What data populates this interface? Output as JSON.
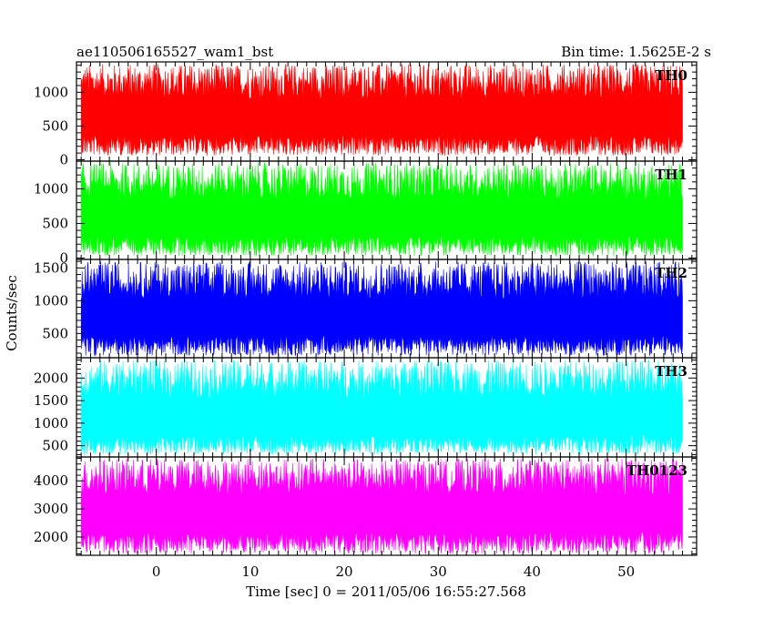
{
  "chart_data": {
    "type": "line",
    "title_left": "ae110506165527_wam1_bst",
    "title_right": "Bin time: 1.5625E-2 s",
    "xlabel": "Time [sec] 0 = 2011/05/06 16:55:27.568",
    "ylabel": "Counts/sec",
    "xlim": [
      -8.5,
      57.5
    ],
    "x_range": [
      -8,
      56
    ],
    "xticks": [
      0,
      10,
      20,
      30,
      40,
      50
    ],
    "xtick_labels": [
      "0",
      "10",
      "20",
      "30",
      "40",
      "50"
    ],
    "grid": false,
    "panels": [
      {
        "name": "TH0",
        "color": "#ff0000",
        "ylim": [
          -20,
          1450
        ],
        "yticks": [
          0,
          500,
          1000
        ],
        "ytick_labels": [
          "0",
          "500",
          "1000"
        ],
        "baseline": 620,
        "low": 60,
        "high": 1420
      },
      {
        "name": "TH1",
        "color": "#00ff00",
        "ylim": [
          -20,
          1400
        ],
        "yticks": [
          0,
          500,
          1000
        ],
        "ytick_labels": [
          "0",
          "500",
          "1000"
        ],
        "baseline": 560,
        "low": 30,
        "high": 1380
      },
      {
        "name": "TH2",
        "color": "#0000ff",
        "ylim": [
          130,
          1630
        ],
        "yticks": [
          500,
          1000,
          1500
        ],
        "ytick_labels": [
          "500",
          "1000",
          "1500"
        ],
        "baseline": 720,
        "low": 160,
        "high": 1600
      },
      {
        "name": "TH3",
        "color": "#00ffff",
        "ylim": [
          250,
          2450
        ],
        "yticks": [
          500,
          1000,
          1500,
          2000
        ],
        "ytick_labels": [
          "500",
          "1000",
          "1500",
          "2000"
        ],
        "baseline": 1100,
        "low": 300,
        "high": 2400
      },
      {
        "name": "TH0123",
        "color": "#ff00ff",
        "ylim": [
          1350,
          4850
        ],
        "yticks": [
          2000,
          3000,
          4000
        ],
        "ytick_labels": [
          "2000",
          "3000",
          "4000"
        ],
        "baseline": 2800,
        "low": 1400,
        "high": 4800
      }
    ]
  }
}
